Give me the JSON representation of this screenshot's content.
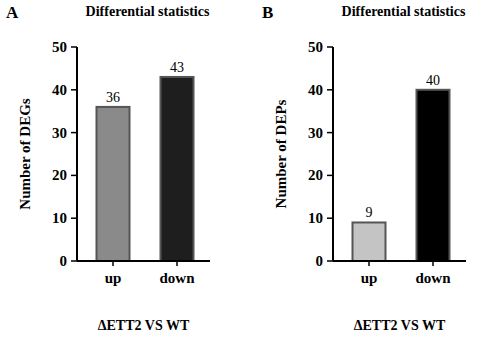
{
  "chart_data": [
    {
      "type": "bar",
      "panel_label": "A",
      "title": "Differential statistics",
      "categories": [
        "up",
        "down"
      ],
      "values": [
        36,
        43
      ],
      "colors": [
        "#8a8a8a",
        "#1e1e1e"
      ],
      "ylim": [
        0,
        50
      ],
      "yticks": [
        0,
        10,
        20,
        30,
        40,
        50
      ],
      "y_label": "Number of DEGs",
      "x_label": "ΔETT2 VS WT",
      "data_labels": true
    },
    {
      "type": "bar",
      "panel_label": "B",
      "title": "Differential statistics",
      "categories": [
        "up",
        "down"
      ],
      "values": [
        9,
        40
      ],
      "colors": [
        "#c4c4c4",
        "#000000"
      ],
      "ylim": [
        0,
        50
      ],
      "yticks": [
        0,
        10,
        20,
        30,
        40,
        50
      ],
      "y_label": "Number of DEPs",
      "x_label": "ΔETT2 VS WT",
      "data_labels": true
    }
  ]
}
